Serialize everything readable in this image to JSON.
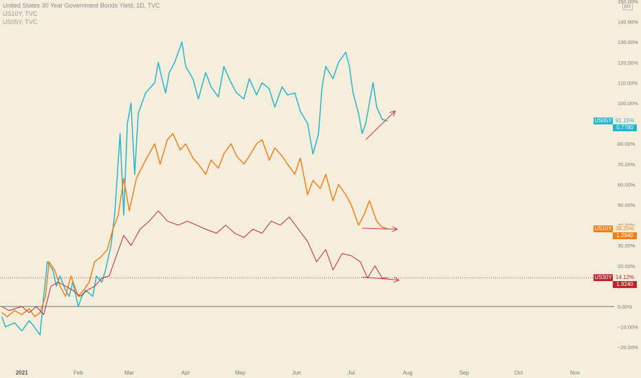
{
  "legend": {
    "title": "United States 30 Year Government Bonds Yield, 1D, TVC",
    "line2": "US10Y, TVC",
    "line3": "US05Y, TVC"
  },
  "scale_button": "pct",
  "badges": {
    "us05y": {
      "name": "US05Y",
      "pct": "91.15%",
      "value": "0.7780",
      "color": "#22b5cf"
    },
    "us10y": {
      "name": "US10Y",
      "pct": "38.25%",
      "value": "1.2940",
      "color": "#f07e14"
    },
    "us30y": {
      "name": "US30Y",
      "pct": "14.12%",
      "value": "1.9240",
      "color": "#b8252c"
    }
  },
  "chart_data": {
    "type": "line",
    "title": "United States 30 Year Government Bonds Yield, 1D, TVC",
    "y_unit": "percent change",
    "ylim": [
      -25,
      150
    ],
    "x_ticks": [
      "2021",
      "Feb",
      "Mar",
      "Apr",
      "May",
      "Jun",
      "Jul",
      "Aug",
      "Sep",
      "Oct",
      "Nov"
    ],
    "y_ticks": [
      "150.00%",
      "140.00%",
      "130.00%",
      "120.00%",
      "110.00%",
      "100.00%",
      "90.00%",
      "80.00%",
      "70.00%",
      "60.00%",
      "50.00%",
      "40.00%",
      "30.00%",
      "20.00%",
      "10.00%",
      "0.00%",
      "−10.00%",
      "−20.00%"
    ],
    "y_tick_values": [
      150,
      140,
      130,
      120,
      110,
      100,
      90,
      80,
      70,
      60,
      50,
      40,
      30,
      20,
      10,
      0,
      -10,
      -20
    ],
    "colors": {
      "us05y": "#22b5cf",
      "us10y": "#f07e14",
      "us30y": "#b8252c",
      "arrow": "#cc3344"
    },
    "series": [
      {
        "name": "US05Y",
        "key": "us05y",
        "x": [
          "2020-12-21",
          "2020-12-23",
          "2020-12-28",
          "2021-01-01",
          "2021-01-05",
          "2021-01-07",
          "2021-01-11",
          "2021-01-13",
          "2021-01-15",
          "2021-01-18",
          "2021-01-20",
          "2021-01-22",
          "2021-01-25",
          "2021-01-27",
          "2021-01-29",
          "2021-02-01",
          "2021-02-03",
          "2021-02-05",
          "2021-02-09",
          "2021-02-11",
          "2021-02-14",
          "2021-02-16",
          "2021-02-19",
          "2021-02-21",
          "2021-02-24",
          "2021-02-26",
          "2021-02-28",
          "2021-03-02",
          "2021-03-04",
          "2021-03-06",
          "2021-03-08",
          "2021-03-10",
          "2021-03-12",
          "2021-03-15",
          "2021-03-17",
          "2021-03-19",
          "2021-03-21",
          "2021-03-23",
          "2021-03-26",
          "2021-03-28",
          "2021-03-30",
          "2021-04-01",
          "2021-04-05",
          "2021-04-08",
          "2021-04-12",
          "2021-04-15",
          "2021-04-19",
          "2021-04-22",
          "2021-04-26",
          "2021-04-29",
          "2021-05-03",
          "2021-05-06",
          "2021-05-10",
          "2021-05-13",
          "2021-05-17",
          "2021-05-20",
          "2021-05-24",
          "2021-05-27",
          "2021-05-31",
          "2021-06-03",
          "2021-06-07",
          "2021-06-10",
          "2021-06-13",
          "2021-06-15",
          "2021-06-17",
          "2021-06-21",
          "2021-06-24",
          "2021-06-28",
          "2021-06-30",
          "2021-07-02",
          "2021-07-05",
          "2021-07-07",
          "2021-07-09",
          "2021-07-11",
          "2021-07-13",
          "2021-07-15",
          "2021-07-18",
          "2021-07-21"
        ],
        "values": [
          -5,
          -10,
          -8,
          -12,
          -7,
          -9,
          -14,
          5,
          22,
          18,
          10,
          15,
          8,
          5,
          12,
          0,
          5,
          8,
          5,
          15,
          12,
          18,
          30,
          45,
          85,
          45,
          90,
          100,
          65,
          95,
          100,
          105,
          107,
          110,
          120,
          112,
          105,
          115,
          120,
          125,
          130,
          118,
          112,
          102,
          115,
          108,
          103,
          118,
          110,
          105,
          102,
          112,
          104,
          110,
          107,
          98,
          108,
          104,
          105,
          96,
          90,
          75,
          85,
          108,
          118,
          112,
          120,
          125,
          118,
          105,
          95,
          85,
          90,
          100,
          110,
          98,
          92,
          91.15
        ]
      },
      {
        "name": "US10Y",
        "key": "us10y",
        "x": [
          "2020-12-21",
          "2020-12-24",
          "2020-12-28",
          "2021-01-01",
          "2021-01-05",
          "2021-01-08",
          "2021-01-11",
          "2021-01-14",
          "2021-01-16",
          "2021-01-19",
          "2021-01-22",
          "2021-01-25",
          "2021-01-28",
          "2021-02-01",
          "2021-02-04",
          "2021-02-07",
          "2021-02-10",
          "2021-02-13",
          "2021-02-17",
          "2021-02-20",
          "2021-02-23",
          "2021-02-26",
          "2021-03-01",
          "2021-03-05",
          "2021-03-10",
          "2021-03-15",
          "2021-03-18",
          "2021-03-22",
          "2021-03-25",
          "2021-03-29",
          "2021-04-01",
          "2021-04-05",
          "2021-04-08",
          "2021-04-12",
          "2021-04-15",
          "2021-04-19",
          "2021-04-22",
          "2021-04-26",
          "2021-04-29",
          "2021-05-03",
          "2021-05-06",
          "2021-05-10",
          "2021-05-13",
          "2021-05-17",
          "2021-05-20",
          "2021-05-24",
          "2021-05-27",
          "2021-05-31",
          "2021-06-03",
          "2021-06-07",
          "2021-06-10",
          "2021-06-14",
          "2021-06-17",
          "2021-06-21",
          "2021-06-24",
          "2021-06-28",
          "2021-07-01",
          "2021-07-05",
          "2021-07-08",
          "2021-07-11",
          "2021-07-15",
          "2021-07-18",
          "2021-07-21"
        ],
        "values": [
          -3,
          -5,
          -2,
          -4,
          -1,
          -5,
          -3,
          5,
          22,
          18,
          10,
          5,
          15,
          5,
          8,
          12,
          22,
          24,
          28,
          38,
          45,
          63,
          47,
          63,
          72,
          80,
          70,
          82,
          85,
          77,
          80,
          73,
          70,
          65,
          72,
          68,
          75,
          80,
          74,
          70,
          74,
          80,
          82,
          72,
          78,
          74,
          70,
          65,
          73,
          55,
          62,
          58,
          65,
          52,
          60,
          55,
          50,
          40,
          45,
          52,
          42,
          39,
          38.25
        ]
      },
      {
        "name": "US30Y",
        "key": "us30y",
        "x": [
          "2020-12-21",
          "2020-12-25",
          "2021-01-01",
          "2021-01-05",
          "2021-01-09",
          "2021-01-13",
          "2021-01-17",
          "2021-01-21",
          "2021-01-25",
          "2021-01-29",
          "2021-02-02",
          "2021-02-06",
          "2021-02-10",
          "2021-02-14",
          "2021-02-18",
          "2021-02-22",
          "2021-02-26",
          "2021-03-02",
          "2021-03-07",
          "2021-03-12",
          "2021-03-17",
          "2021-03-22",
          "2021-03-28",
          "2021-04-02",
          "2021-04-07",
          "2021-04-12",
          "2021-04-18",
          "2021-04-23",
          "2021-04-28",
          "2021-05-03",
          "2021-05-08",
          "2021-05-13",
          "2021-05-18",
          "2021-05-23",
          "2021-05-28",
          "2021-06-02",
          "2021-06-07",
          "2021-06-12",
          "2021-06-17",
          "2021-06-21",
          "2021-06-26",
          "2021-07-01",
          "2021-07-06",
          "2021-07-10",
          "2021-07-14",
          "2021-07-18",
          "2021-07-21"
        ],
        "values": [
          0,
          -2,
          0,
          -3,
          0,
          -4,
          10,
          12,
          10,
          8,
          5,
          8,
          10,
          14,
          15,
          25,
          35,
          30,
          38,
          42,
          47,
          42,
          40,
          42,
          40,
          38,
          36,
          40,
          36,
          34,
          38,
          36,
          42,
          40,
          44,
          38,
          32,
          22,
          28,
          18,
          26,
          25,
          22,
          14,
          20,
          14,
          14.12
        ]
      }
    ],
    "annotations": [
      {
        "type": "arrow",
        "color": "#cc3344",
        "from": {
          "x": "2021-07-09",
          "y": 82
        },
        "to": {
          "x": "2021-07-25",
          "y": 96
        }
      },
      {
        "type": "arrow",
        "color": "#cc3344",
        "from": {
          "x": "2021-07-07",
          "y": 38.5
        },
        "to": {
          "x": "2021-07-26",
          "y": 38
        }
      },
      {
        "type": "arrow",
        "color": "#cc3344",
        "from": {
          "x": "2021-07-07",
          "y": 14.5
        },
        "to": {
          "x": "2021-07-27",
          "y": 13
        }
      }
    ],
    "reference_lines": [
      {
        "y": 0,
        "style": "solid",
        "color": "#444444"
      },
      {
        "y": 14.12,
        "style": "dotted",
        "color": "#b8252c"
      }
    ]
  }
}
